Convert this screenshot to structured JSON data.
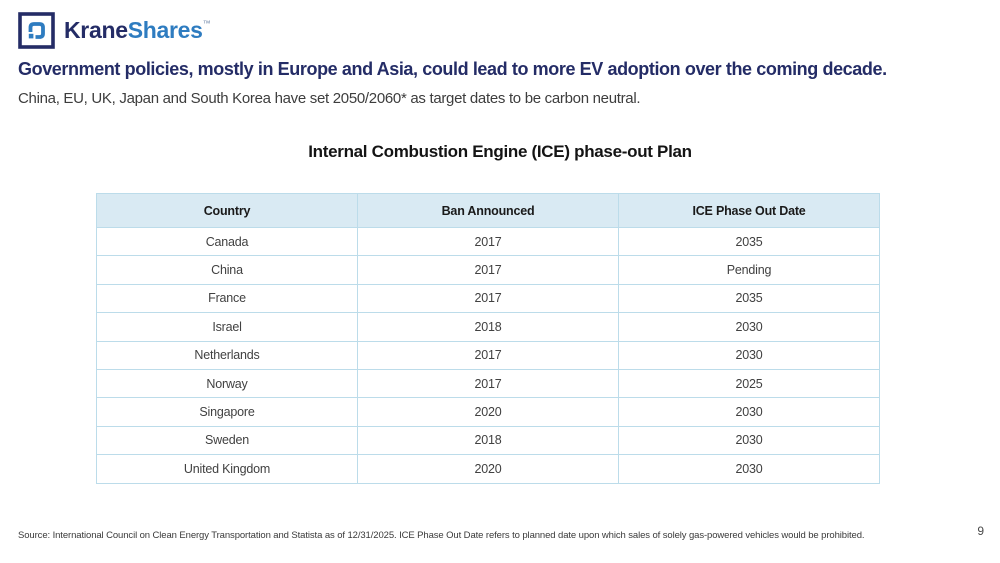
{
  "logo": {
    "brand_primary": "Krane",
    "brand_secondary": "Shares",
    "trademark": "™"
  },
  "header": {
    "headline": "Government policies, mostly in Europe and Asia, could lead to more EV adoption over the coming decade.",
    "subtitle": "China, EU, UK, Japan and South Korea have set 2050/2060* as target dates to be carbon neutral."
  },
  "table": {
    "title": "Internal Combustion Engine (ICE) phase-out Plan",
    "columns": [
      "Country",
      "Ban Announced",
      "ICE Phase Out Date"
    ],
    "rows": [
      [
        "Canada",
        "2017",
        "2035"
      ],
      [
        "China",
        "2017",
        "Pending"
      ],
      [
        "France",
        "2017",
        "2035"
      ],
      [
        "Israel",
        "2018",
        "2030"
      ],
      [
        "Netherlands",
        "2017",
        "2030"
      ],
      [
        "Norway",
        "2017",
        "2025"
      ],
      [
        "Singapore",
        "2020",
        "2030"
      ],
      [
        "Sweden",
        "2018",
        "2030"
      ],
      [
        "United Kingdom",
        "2020",
        "2030"
      ]
    ]
  },
  "footer": {
    "source": "Source: International Council on Clean Energy Transportation and Statista as of 12/31/2025. ICE Phase Out Date refers to planned date upon which sales of solely gas-powered vehicles would be prohibited.",
    "page_number": "9"
  },
  "colors": {
    "brand_navy": "#242c66",
    "brand_blue": "#2e7cc0",
    "table_header_bg": "#d9eaf3",
    "table_border": "#bcdcea",
    "body_text": "#3d3d3d"
  }
}
